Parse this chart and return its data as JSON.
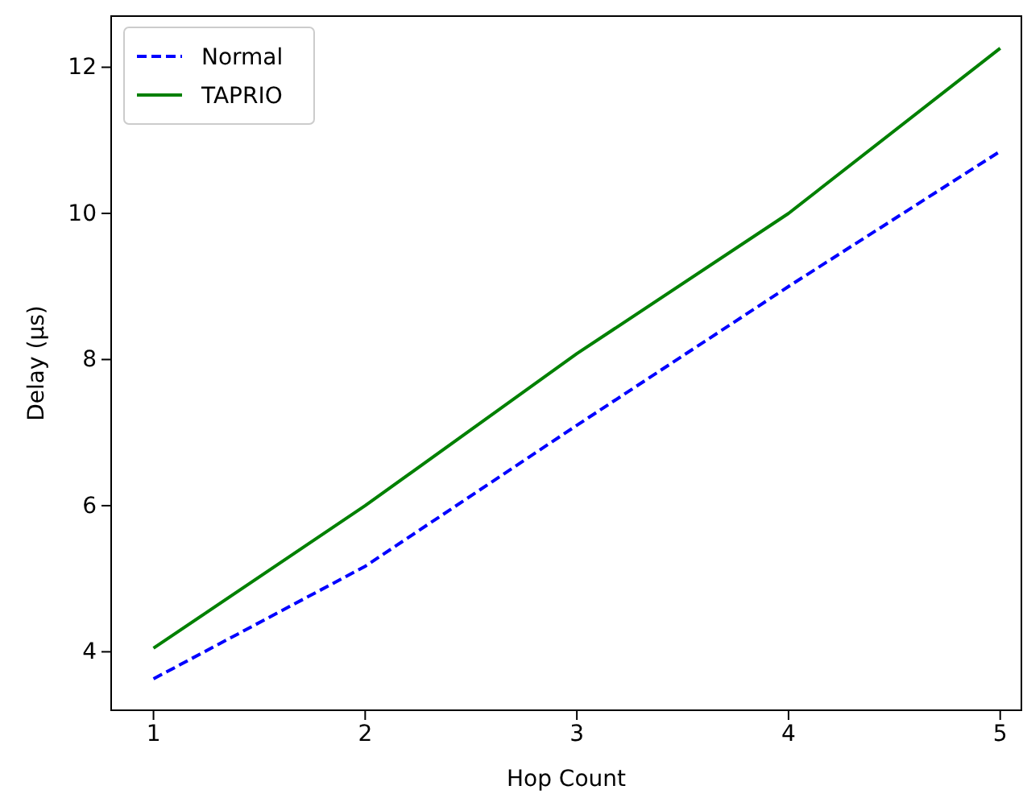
{
  "chart_data": {
    "type": "line",
    "xlabel": "Hop Count",
    "ylabel": "Delay (μs)",
    "x": [
      1,
      2,
      3,
      4,
      5
    ],
    "series": [
      {
        "name": "Normal",
        "color": "#0000ff",
        "line_style": "dashed",
        "values": [
          3.63,
          5.17,
          7.1,
          9.0,
          10.85
        ]
      },
      {
        "name": "TAPRIO",
        "color": "#008000",
        "line_style": "solid",
        "values": [
          4.05,
          6.0,
          8.08,
          10.0,
          12.26
        ]
      }
    ],
    "xlim": [
      0.8,
      5.1
    ],
    "xticks": [
      1,
      2,
      3,
      4,
      5
    ],
    "ylim": [
      3.2,
      12.7
    ],
    "yticks": [
      4,
      6,
      8,
      10,
      12
    ],
    "grid": false,
    "legend": "top left",
    "marker": "none"
  }
}
